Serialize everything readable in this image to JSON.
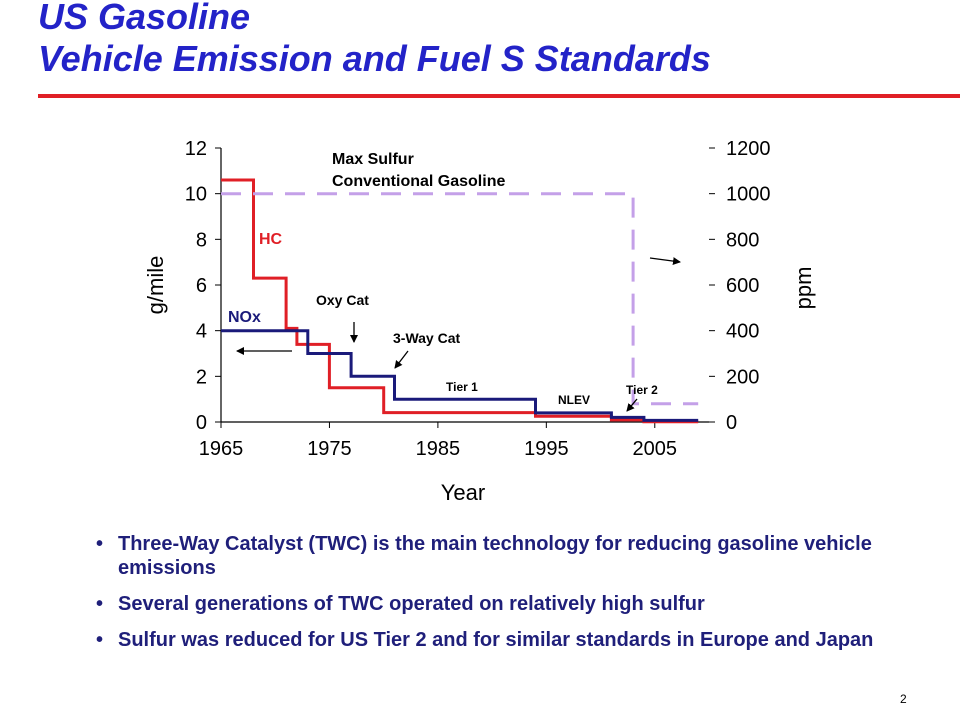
{
  "slide": {
    "title_line1": "US Gasoline",
    "title_line2": "Vehicle Emission and Fuel S Standards",
    "page_number": "2",
    "bullets": [
      "Three-Way Catalyst (TWC) is the main technology for reducing gasoline vehicle emissions",
      "Several generations of TWC operated on relatively high sulfur",
      "Sulfur was reduced for US Tier 2 and for similar standards in Europe and Japan"
    ],
    "colors": {
      "title": "#2323c8",
      "rule": "#e01f26",
      "bullet_text": "#1f1f7a"
    }
  },
  "chart_data": {
    "type": "line",
    "xlabel": "Year",
    "ylabel": "g/mile",
    "y2label": "ppm",
    "xlim": [
      1965,
      2010
    ],
    "ylim": [
      0,
      12
    ],
    "y2lim": [
      0,
      1200
    ],
    "x_ticks": [
      "1965",
      "1975",
      "1985",
      "1995",
      "2005"
    ],
    "y_ticks": [
      "0",
      "2",
      "4",
      "6",
      "8",
      "10",
      "12"
    ],
    "y2_ticks": [
      "0",
      "200",
      "400",
      "600",
      "800",
      "1000",
      "1200"
    ],
    "grid": false,
    "series": [
      {
        "name": "HC",
        "axis": "left",
        "color": "#e01f26",
        "style": "step-solid",
        "points": [
          [
            1965,
            10.6
          ],
          [
            1968,
            10.6
          ],
          [
            1968,
            6.3
          ],
          [
            1971,
            6.3
          ],
          [
            1971,
            4.1
          ],
          [
            1972,
            4.1
          ],
          [
            1972,
            3.4
          ],
          [
            1974,
            3.4
          ],
          [
            1974,
            3.4
          ],
          [
            1975,
            3.4
          ],
          [
            1975,
            1.5
          ],
          [
            1980,
            1.5
          ],
          [
            1980,
            0.41
          ],
          [
            1994,
            0.41
          ],
          [
            1994,
            0.25
          ],
          [
            2001,
            0.25
          ],
          [
            2001,
            0.09
          ],
          [
            2004,
            0.09
          ],
          [
            2004,
            0.01
          ],
          [
            2009,
            0.01
          ]
        ]
      },
      {
        "name": "NOx",
        "axis": "left",
        "color": "#1a1a7a",
        "style": "step-solid",
        "points": [
          [
            1965,
            4.0
          ],
          [
            1973,
            4.0
          ],
          [
            1973,
            3.0
          ],
          [
            1977,
            3.0
          ],
          [
            1977,
            2.0
          ],
          [
            1981,
            2.0
          ],
          [
            1981,
            1.0
          ],
          [
            1994,
            1.0
          ],
          [
            1994,
            0.4
          ],
          [
            2001,
            0.4
          ],
          [
            2001,
            0.2
          ],
          [
            2004,
            0.2
          ],
          [
            2004,
            0.07
          ],
          [
            2009,
            0.07
          ]
        ]
      },
      {
        "name": "Max Sulfur Conventional Gasoline",
        "axis": "right",
        "color": "#c4a0e8",
        "style": "step-dashed",
        "points": [
          [
            1965,
            1000
          ],
          [
            2003,
            1000
          ],
          [
            2003,
            80
          ],
          [
            2009,
            80
          ]
        ]
      }
    ],
    "labels": {
      "hc": "HC",
      "nox": "NOx",
      "sulfur_line1": "Max Sulfur",
      "sulfur_line2": "Conventional   Gasoline",
      "oxy_cat": "Oxy Cat",
      "three_way": "3-Way Cat",
      "tier1": "Tier 1",
      "nlev": "NLEV",
      "tier2": "Tier 2"
    }
  }
}
